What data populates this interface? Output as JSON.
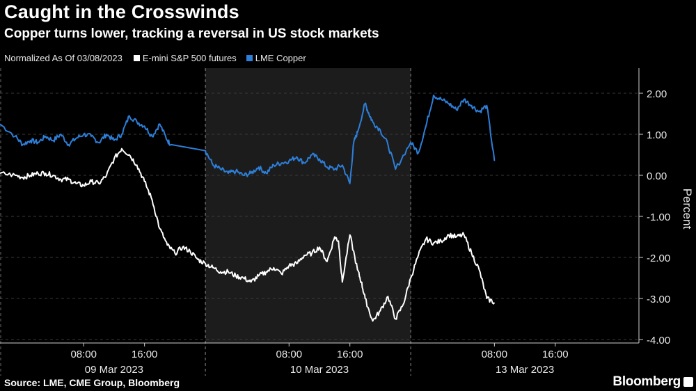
{
  "header": {
    "title": "Caught in the Crosswinds",
    "subtitle": "Copper turns lower, tracking a reversal in US stock markets"
  },
  "legend": {
    "note": "Normalized As Of 03/08/2023",
    "items": [
      {
        "label": "E-mini S&P 500 futures",
        "color": "#ffffff"
      },
      {
        "label": "LME Copper",
        "color": "#2d7fd9"
      }
    ]
  },
  "footer": {
    "source": "Source: LME, CME Group, Bloomberg",
    "brand": "Bloomberg"
  },
  "chart_data": {
    "type": "line",
    "ylabel": "Percent",
    "ylim": [
      -4.0,
      2.5
    ],
    "yticks": [
      2.0,
      1.0,
      0.0,
      -1.0,
      -2.0,
      -3.0,
      -4.0
    ],
    "ytick_labels": [
      "2.00",
      "1.00",
      "0.00",
      "-1.00",
      "-2.00",
      "-3.00",
      "-4.00"
    ],
    "x_unit": "hours since 00:00 09 Mar 2023 (compressed trading-time axis)",
    "xlim": [
      -3,
      81
    ],
    "xticks": [
      {
        "x": 8,
        "label": "08:00"
      },
      {
        "x": 16,
        "label": "16:00"
      },
      {
        "x": 35,
        "label": "08:00"
      },
      {
        "x": 43,
        "label": "16:00"
      },
      {
        "x": 62,
        "label": "08:00"
      },
      {
        "x": 70,
        "label": "16:00"
      }
    ],
    "day_labels": [
      {
        "x": 12,
        "label": "09 Mar 2023"
      },
      {
        "x": 39,
        "label": "10 Mar 2023"
      },
      {
        "x": 66,
        "label": "13 Mar 2023"
      }
    ],
    "day_dividers": [
      24,
      51
    ],
    "shaded_x": [
      24,
      51
    ],
    "series": [
      {
        "name": "LME Copper",
        "color": "#2d7fd9",
        "x": [
          -3,
          -1,
          0,
          1,
          2,
          3,
          4,
          5,
          6,
          7,
          8,
          9,
          10,
          11,
          12,
          13,
          14,
          15,
          16,
          17,
          18,
          19,
          19.5,
          24,
          25,
          26,
          27,
          28,
          29,
          30,
          31,
          32,
          33,
          34,
          35,
          36,
          37,
          38,
          39,
          40,
          41,
          42,
          43,
          43.5,
          44,
          45,
          45.5,
          46,
          47,
          48,
          49,
          51,
          52,
          53,
          54,
          55,
          56,
          57,
          58,
          59,
          60,
          61,
          62
        ],
        "values": [
          1.25,
          0.95,
          0.75,
          0.85,
          0.8,
          0.95,
          0.85,
          1.0,
          0.75,
          0.9,
          1.0,
          0.95,
          0.8,
          1.0,
          0.85,
          1.0,
          1.45,
          1.3,
          1.2,
          0.95,
          1.25,
          0.85,
          0.75,
          0.6,
          0.25,
          0.15,
          0.05,
          0.1,
          0.0,
          0.05,
          0.2,
          0.05,
          0.25,
          0.3,
          0.35,
          0.45,
          0.3,
          0.5,
          0.4,
          0.2,
          0.15,
          0.25,
          -0.2,
          0.8,
          1.05,
          1.75,
          1.5,
          1.3,
          1.1,
          0.75,
          0.15,
          0.8,
          0.55,
          1.2,
          1.95,
          1.85,
          1.75,
          1.6,
          1.85,
          1.7,
          1.55,
          1.7,
          0.35
        ]
      },
      {
        "name": "E-mini S&P 500 futures",
        "color": "#ffffff",
        "x": [
          -3,
          -1,
          0,
          1,
          2,
          3,
          4,
          5,
          6,
          7,
          8,
          9,
          10,
          11,
          12,
          13,
          14,
          15,
          16,
          17,
          18,
          19,
          20,
          21,
          22,
          23,
          24,
          25,
          26,
          27,
          28,
          29,
          30,
          31,
          32,
          33,
          34,
          35,
          36,
          37,
          38,
          39,
          40,
          41,
          41.5,
          42,
          43,
          44,
          44.5,
          45,
          46,
          47,
          48,
          49,
          50,
          51,
          52,
          53,
          54,
          55,
          56,
          57,
          58,
          59,
          60,
          61,
          62
        ],
        "values": [
          0.05,
          0.0,
          -0.05,
          0.0,
          0.05,
          0.05,
          0.0,
          -0.1,
          -0.1,
          -0.2,
          -0.25,
          -0.15,
          -0.2,
          0.0,
          0.4,
          0.65,
          0.5,
          0.25,
          -0.15,
          -0.6,
          -1.3,
          -1.7,
          -1.9,
          -1.75,
          -1.85,
          -2.05,
          -2.15,
          -2.25,
          -2.35,
          -2.35,
          -2.45,
          -2.5,
          -2.6,
          -2.45,
          -2.35,
          -2.25,
          -2.4,
          -2.2,
          -2.15,
          -1.95,
          -1.9,
          -1.75,
          -2.1,
          -1.5,
          -1.6,
          -2.6,
          -1.45,
          -2.3,
          -2.6,
          -3.0,
          -3.55,
          -3.3,
          -2.95,
          -3.5,
          -3.15,
          -2.5,
          -1.95,
          -1.55,
          -1.65,
          -1.6,
          -1.45,
          -1.5,
          -1.45,
          -1.9,
          -2.3,
          -3.0,
          -3.1
        ]
      }
    ]
  }
}
